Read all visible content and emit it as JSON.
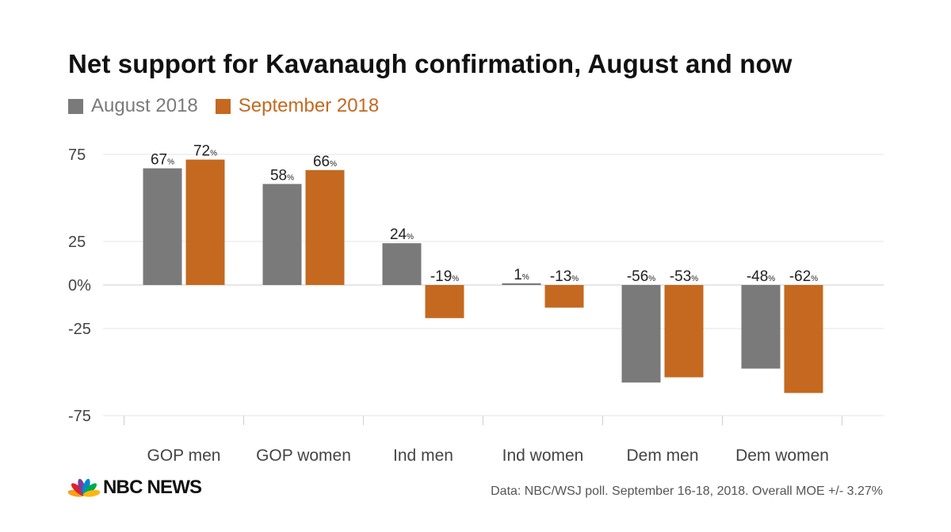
{
  "chart_data": {
    "type": "bar",
    "title": "Net support for Kavanaugh confirmation, August and now",
    "categories": [
      "GOP men",
      "GOP women",
      "Ind men",
      "Ind women",
      "Dem men",
      "Dem women"
    ],
    "series": [
      {
        "name": "August 2018",
        "color": "#7a7a7a",
        "values": [
          67,
          58,
          24,
          1,
          -56,
          -48
        ]
      },
      {
        "name": "September 2018",
        "color": "#c4691f",
        "values": [
          72,
          66,
          -19,
          -13,
          -53,
          -62
        ]
      }
    ],
    "yticks": [
      {
        "value": 75,
        "label": "75"
      },
      {
        "value": 25,
        "label": "25"
      },
      {
        "value": 0,
        "label": "0%"
      },
      {
        "value": -25,
        "label": "-25"
      },
      {
        "value": -75,
        "label": "-75"
      }
    ],
    "ylim": [
      -75,
      75
    ],
    "grid": true,
    "legend": "top-left",
    "data_label_suffix": "%"
  },
  "source": "Data: NBC/WSJ poll. September 16-18, 2018. Overall MOE +/- 3.27%",
  "logo": {
    "text": "NBC NEWS",
    "peacock_colors": [
      "#f7a21b",
      "#e3202a",
      "#7b3f98",
      "#0089cf",
      "#00a94f",
      "#fcb711"
    ]
  }
}
